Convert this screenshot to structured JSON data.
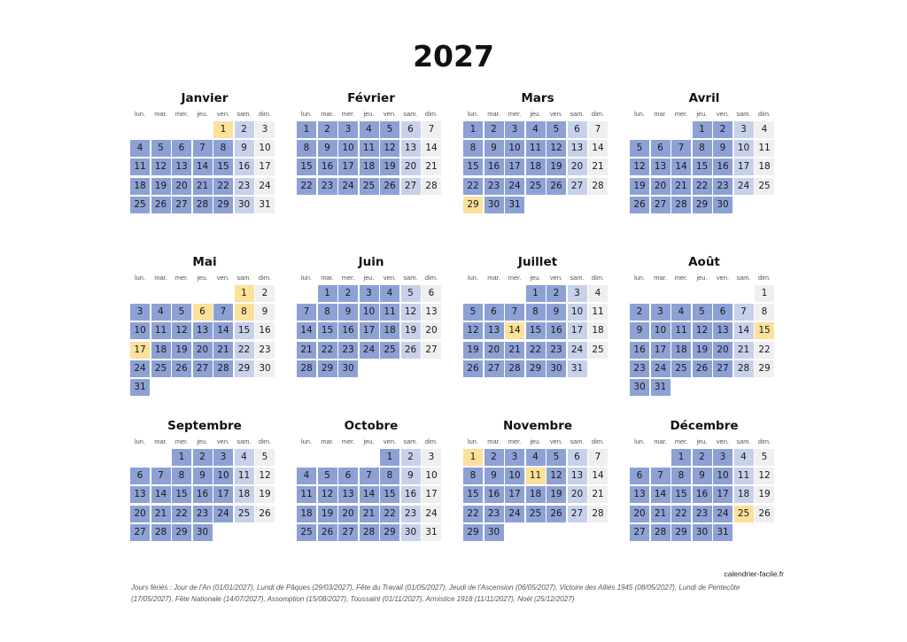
{
  "year": "2027",
  "weekday_labels": [
    "lun.",
    "mar.",
    "mer.",
    "jeu.",
    "ven.",
    "sam.",
    "dim."
  ],
  "months": [
    {
      "name": "Janvier",
      "offset": 4,
      "days": 31,
      "holidays": [
        1
      ]
    },
    {
      "name": "Février",
      "offset": 0,
      "days": 28,
      "holidays": []
    },
    {
      "name": "Mars",
      "offset": 0,
      "days": 31,
      "holidays": [
        29
      ]
    },
    {
      "name": "Avril",
      "offset": 3,
      "days": 30,
      "holidays": []
    },
    {
      "name": "Mai",
      "offset": 5,
      "days": 31,
      "holidays": [
        1,
        6,
        8,
        17
      ]
    },
    {
      "name": "Juin",
      "offset": 1,
      "days": 30,
      "holidays": []
    },
    {
      "name": "Juillet",
      "offset": 3,
      "days": 31,
      "holidays": [
        14
      ]
    },
    {
      "name": "Août",
      "offset": 6,
      "days": 31,
      "holidays": [
        15
      ]
    },
    {
      "name": "Septembre",
      "offset": 2,
      "days": 30,
      "holidays": []
    },
    {
      "name": "Octobre",
      "offset": 4,
      "days": 31,
      "holidays": []
    },
    {
      "name": "Novembre",
      "offset": 0,
      "days": 30,
      "holidays": [
        1,
        11
      ]
    },
    {
      "name": "Décembre",
      "offset": 2,
      "days": 31,
      "holidays": [
        25
      ]
    }
  ],
  "colors": {
    "weekday": "#8da1d4",
    "saturday": "#c7d1ea",
    "sunday": "#efefef",
    "holiday": "#fbe199"
  },
  "source": "calendrier-facile.fr",
  "holidays_note": "Jours fériés :  Jour de l'An (01/01/2027),  Lundi de Pâques (29/03/2027),  Fête du Travail (01/05/2027),  Jeudi de l'Ascension (06/05/2027),  Victoire des Alliés 1945 (08/05/2027),  Lundi de Pentecôte (17/05/2027),  Fête Nationale (14/07/2027),  Assomption (15/08/2027),  Toussaint (01/11/2027),  Armistice 1918 (11/11/2027),  Noël (25/12/2027)"
}
